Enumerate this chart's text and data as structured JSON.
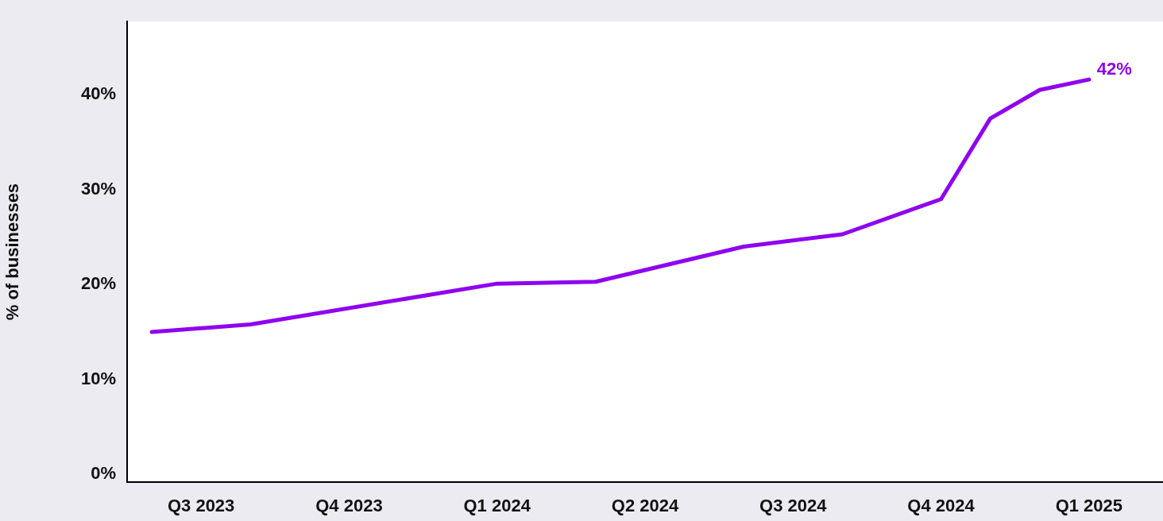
{
  "chart_data": {
    "type": "line",
    "ylabel": "% of businesses",
    "categories": [
      null,
      "Q3 2023",
      null,
      null,
      "Q4 2023",
      null,
      null,
      "Q1 2024",
      null,
      null,
      "Q2 2024",
      null,
      null,
      "Q3 2024",
      null,
      null,
      "Q4 2024",
      null,
      null,
      "Q1 2025",
      null
    ],
    "series": [
      {
        "color": "#8f00f0",
        "values": [
          15.0,
          null,
          15.8,
          null,
          null,
          null,
          null,
          20.1,
          null,
          20.3,
          null,
          null,
          24.0,
          null,
          25.3,
          null,
          29.0,
          37.5,
          40.5,
          41.6,
          null
        ]
      }
    ],
    "ylim": [
      -0.8,
      47.7
    ],
    "yticks": [
      {
        "value": 0,
        "label": "0%"
      },
      {
        "value": 10,
        "label": "10%"
      },
      {
        "value": 20,
        "label": "20%"
      },
      {
        "value": 30,
        "label": "30%"
      },
      {
        "value": 40,
        "label": "40%"
      }
    ],
    "grid": false,
    "legend": false,
    "marker": "none",
    "line_style": "solid",
    "annotations": [
      {
        "text": "42%",
        "x": "Q1 2025",
        "y": 41.6
      }
    ]
  }
}
